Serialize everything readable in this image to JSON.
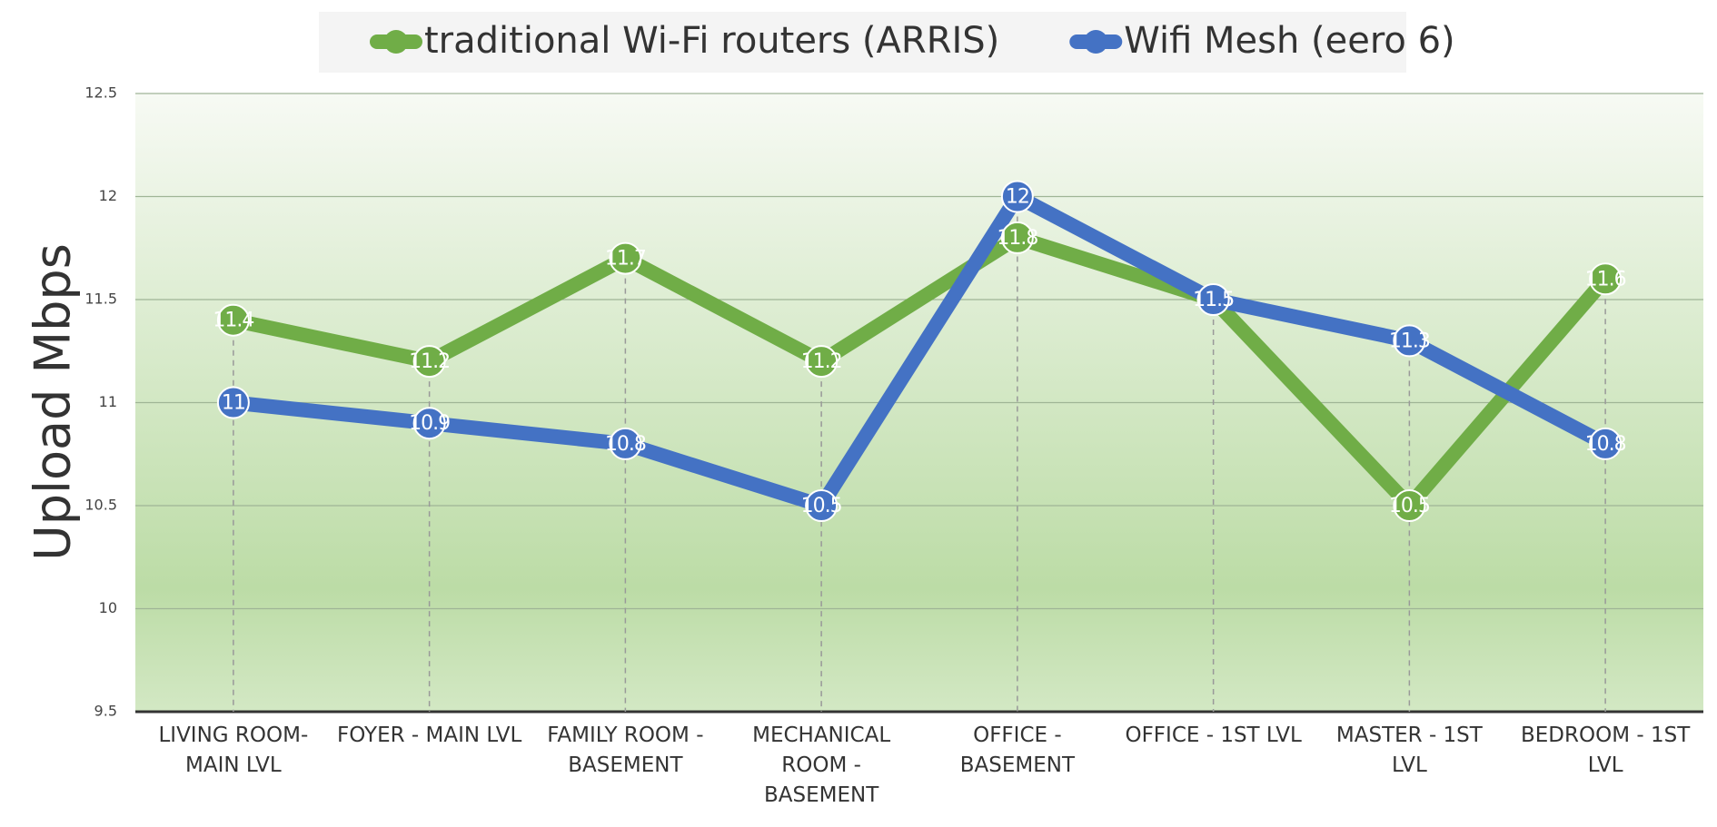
{
  "chart_data": {
    "type": "line",
    "y_label": "Upload Mbps",
    "categories": [
      "LIVING ROOM- MAIN LVL",
      "FOYER - MAIN LVL",
      "FAMILY ROOM - BASEMENT",
      "MECHANICAL ROOM - BASEMENT",
      "OFFICE - BASEMENT",
      "OFFICE - 1ST LVL",
      "MASTER - 1ST LVL",
      "BEDROOM - 1ST LVL"
    ],
    "series": [
      {
        "name": "traditional Wi-Fi routers (ARRIS)",
        "color": "#70ad47",
        "values": [
          11.4,
          11.2,
          11.7,
          11.2,
          11.8,
          11.5,
          10.5,
          11.6
        ]
      },
      {
        "name": "Wifi Mesh (eero 6)",
        "color": "#4472c4",
        "values": [
          11,
          10.9,
          10.8,
          10.5,
          12,
          11.5,
          11.3,
          10.8
        ]
      }
    ],
    "ylim": [
      9.5,
      12.5
    ],
    "yticks": [
      9.5,
      10,
      10.5,
      11,
      11.5,
      12,
      12.5
    ],
    "grid": true,
    "legend": "top"
  }
}
